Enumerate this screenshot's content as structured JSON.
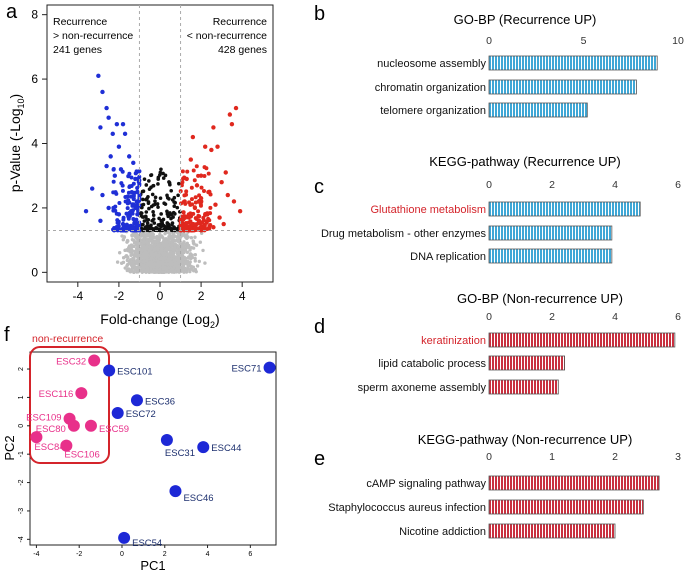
{
  "panel_letters": {
    "a": "a",
    "b": "b",
    "c": "c",
    "d": "d",
    "e": "e",
    "f": "f"
  },
  "colors": {
    "up_blue": "#3fa7d6",
    "down_red": "#c9303f",
    "volcano_blue": "#1f2fd6",
    "volcano_red": "#e0281e",
    "volcano_black": "#111111",
    "volcano_gray": "#bdbdbd",
    "pca_magenta": "#e8308a",
    "pca_blue": "#1d28d6",
    "highlight_red": "#d4242b"
  },
  "chart_data": [
    {
      "type": "scatter",
      "id": "volcano",
      "xlabel": "Fold-change (Log",
      "xlabel_sub": "2",
      "xlabel_tail": ")",
      "ylabel": "p-Value (-Log",
      "ylabel_sub": "10",
      "ylabel_tail": ")",
      "xlim": [
        -5.5,
        5.5
      ],
      "ylim": [
        -0.3,
        8.3
      ],
      "xticks": [
        -4,
        -2,
        0,
        2,
        4
      ],
      "yticks": [
        0,
        2,
        4,
        6,
        8
      ],
      "thresholds": {
        "fc": [
          -1,
          1
        ],
        "p": 1.3
      },
      "annotation_left": [
        "Recurrence",
        "> non-recurrence",
        "241 genes"
      ],
      "annotation_right": [
        "Recurrence",
        "< non-recurrence",
        "428 genes"
      ],
      "blue_points": [
        [
          -3.0,
          6.1
        ],
        [
          -2.8,
          5.6
        ],
        [
          -2.6,
          5.1
        ],
        [
          -2.5,
          4.8
        ],
        [
          -2.9,
          4.5
        ],
        [
          -2.3,
          4.3
        ],
        [
          -2.1,
          4.6
        ],
        [
          -1.8,
          4.6
        ],
        [
          -1.7,
          4.3
        ],
        [
          -2.0,
          3.9
        ],
        [
          -2.4,
          3.6
        ],
        [
          -2.6,
          3.3
        ],
        [
          -1.5,
          3.6
        ],
        [
          -1.3,
          3.4
        ],
        [
          -1.2,
          2.9
        ],
        [
          -2.2,
          3.0
        ],
        [
          -1.9,
          3.2
        ],
        [
          -3.3,
          2.6
        ],
        [
          -2.8,
          2.4
        ],
        [
          -1.1,
          2.5
        ],
        [
          -1.6,
          2.2
        ],
        [
          -2.5,
          2.0
        ],
        [
          -3.6,
          1.9
        ],
        [
          -1.4,
          1.9
        ],
        [
          -2.0,
          1.8
        ],
        [
          -1.2,
          1.6
        ],
        [
          -1.8,
          1.5
        ],
        [
          -2.9,
          1.6
        ],
        [
          -1.3,
          1.4
        ],
        [
          -1.1,
          1.8
        ]
      ],
      "red_points": [
        [
          3.7,
          5.1
        ],
        [
          3.4,
          4.9
        ],
        [
          3.5,
          4.6
        ],
        [
          2.6,
          4.5
        ],
        [
          1.6,
          4.2
        ],
        [
          2.2,
          3.9
        ],
        [
          2.8,
          3.9
        ],
        [
          2.5,
          3.8
        ],
        [
          1.5,
          3.5
        ],
        [
          3.2,
          3.1
        ],
        [
          2.0,
          3.0
        ],
        [
          3.0,
          2.8
        ],
        [
          1.3,
          2.9
        ],
        [
          1.8,
          2.7
        ],
        [
          2.4,
          2.5
        ],
        [
          3.3,
          2.4
        ],
        [
          2.0,
          2.3
        ],
        [
          1.2,
          2.2
        ],
        [
          3.6,
          2.2
        ],
        [
          2.7,
          2.1
        ],
        [
          1.7,
          2.0
        ],
        [
          3.9,
          1.9
        ],
        [
          2.3,
          1.8
        ],
        [
          1.4,
          1.7
        ],
        [
          2.9,
          1.7
        ],
        [
          1.9,
          1.6
        ],
        [
          3.1,
          1.5
        ],
        [
          1.2,
          1.4
        ],
        [
          2.6,
          1.4
        ],
        [
          1.6,
          1.5
        ]
      ]
    },
    {
      "type": "bar",
      "id": "gobp-up",
      "title": "GO-BP (Recurrence UP)",
      "xlim": [
        0,
        10
      ],
      "xticks": [
        0,
        5,
        10
      ],
      "categories": [
        "nucleosome assembly",
        "chromatin organization",
        "telomere organization"
      ],
      "values": [
        8.9,
        7.8,
        5.2
      ],
      "highlight": []
    },
    {
      "type": "bar",
      "id": "kegg-up",
      "title": "KEGG-pathway (Recurrence UP)",
      "xlim": [
        0,
        6
      ],
      "xticks": [
        0,
        2,
        4,
        6
      ],
      "categories": [
        "Glutathione metabolism",
        "Drug metabolism - other enzymes",
        "DNA replication"
      ],
      "values": [
        4.8,
        3.9,
        3.9
      ],
      "highlight": [
        0
      ]
    },
    {
      "type": "bar",
      "id": "gobp-down",
      "title": "GO-BP (Non-recurrence UP)",
      "xlim": [
        0,
        6
      ],
      "xticks": [
        0,
        2,
        4,
        6
      ],
      "categories": [
        "keratinization",
        "lipid catabolic process",
        "sperm axoneme assembly"
      ],
      "values": [
        5.9,
        2.4,
        2.2
      ],
      "highlight": [
        0
      ]
    },
    {
      "type": "bar",
      "id": "kegg-down",
      "title": "KEGG-pathway (Non-recurrence UP)",
      "xlim": [
        0,
        3
      ],
      "xticks": [
        0,
        1,
        2,
        3
      ],
      "categories": [
        "cAMP signaling pathway",
        "Staphylococcus aureus infection",
        "Nicotine addiction"
      ],
      "values": [
        2.7,
        2.45,
        2.0
      ],
      "highlight": []
    },
    {
      "type": "scatter",
      "id": "pca",
      "xlabel": "PC1",
      "ylabel": "PC2",
      "xlim": [
        -4.3,
        7.2
      ],
      "ylim": [
        -4.2,
        2.6
      ],
      "xticks": [
        -4,
        -2,
        0,
        2,
        4,
        6
      ],
      "yticks": [
        -4,
        -3,
        -2,
        -1,
        0,
        1,
        2
      ],
      "group_label": "non-recurrence",
      "points": [
        {
          "label": "ESC32",
          "x": -1.3,
          "y": 2.3,
          "group": "non"
        },
        {
          "label": "ESC116",
          "x": -1.9,
          "y": 1.15,
          "group": "non"
        },
        {
          "label": "ESC109",
          "x": -2.45,
          "y": 0.25,
          "group": "non"
        },
        {
          "label": "ESC80",
          "x": -2.25,
          "y": 0.0,
          "group": "non"
        },
        {
          "label": "ESC59",
          "x": -1.45,
          "y": 0.0,
          "group": "non"
        },
        {
          "label": "ESC84",
          "x": -4.0,
          "y": -0.4,
          "group": "non"
        },
        {
          "label": "ESC106",
          "x": -2.6,
          "y": -0.7,
          "group": "non"
        },
        {
          "label": "ESC101",
          "x": -0.6,
          "y": 1.95,
          "group": "rec"
        },
        {
          "label": "ESC71",
          "x": 6.9,
          "y": 2.05,
          "group": "rec"
        },
        {
          "label": "ESC36",
          "x": 0.7,
          "y": 0.9,
          "group": "rec"
        },
        {
          "label": "ESC72",
          "x": -0.2,
          "y": 0.45,
          "group": "rec"
        },
        {
          "label": "ESC31",
          "x": 2.1,
          "y": -0.5,
          "group": "rec"
        },
        {
          "label": "ESC44",
          "x": 3.8,
          "y": -0.75,
          "group": "rec"
        },
        {
          "label": "ESC46",
          "x": 2.5,
          "y": -2.3,
          "group": "rec"
        },
        {
          "label": "ESC54",
          "x": 0.1,
          "y": -3.95,
          "group": "rec"
        }
      ]
    }
  ]
}
